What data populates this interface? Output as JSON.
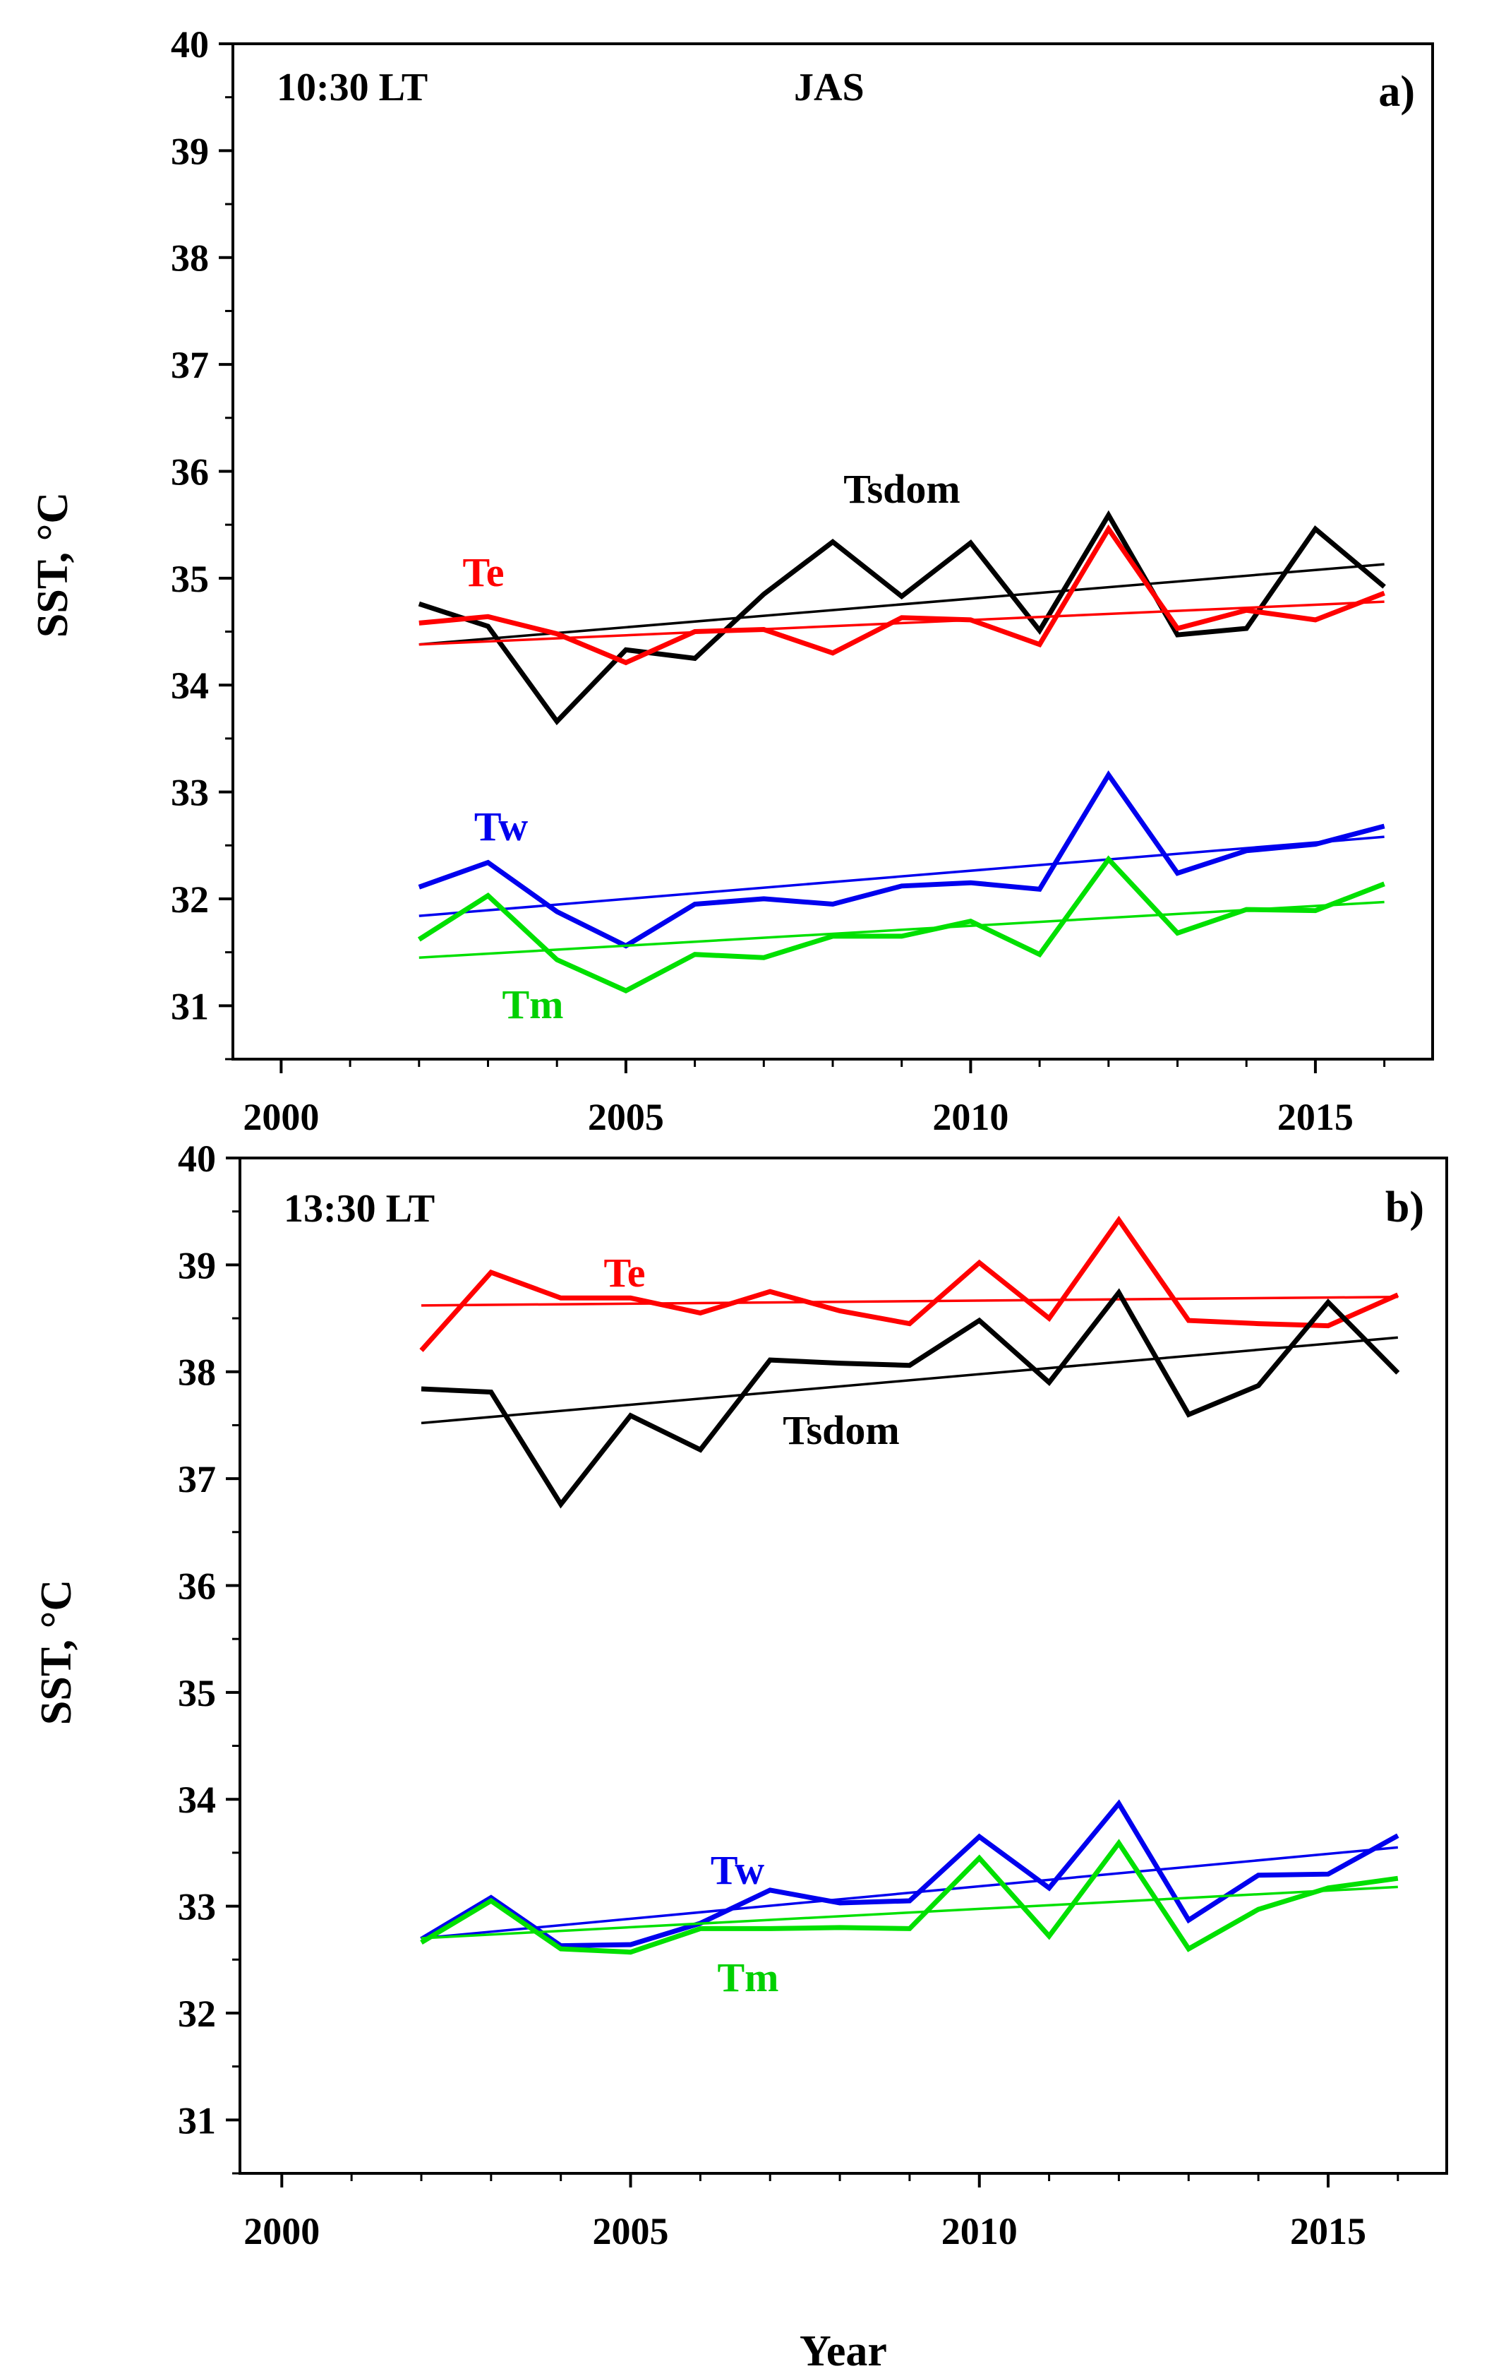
{
  "chart_data": [
    {
      "type": "line",
      "panel_label": "a)",
      "time_label": "10:30 LT",
      "season_label": "JAS",
      "xlabel": "",
      "ylabel": "SST, °C",
      "xlim": [
        1999.3,
        2016.7
      ],
      "ylim": [
        30.5,
        40
      ],
      "xticks": [
        2000,
        2005,
        2010,
        2015
      ],
      "yticks": [
        31,
        32,
        33,
        34,
        35,
        36,
        37,
        38,
        39,
        40
      ],
      "grid": false,
      "x": [
        2002,
        2003,
        2004,
        2005,
        2006,
        2007,
        2008,
        2009,
        2010,
        2011,
        2012,
        2013,
        2014,
        2015,
        2016
      ],
      "series": [
        {
          "name": "Tsdom",
          "color": "#000000",
          "values": [
            34.76,
            34.55,
            33.66,
            34.33,
            34.25,
            34.85,
            35.34,
            34.83,
            35.33,
            34.51,
            35.59,
            34.47,
            34.53,
            35.46,
            34.92
          ],
          "trend": [
            34.38,
            35.13
          ]
        },
        {
          "name": "Te",
          "color": "#ff0000",
          "values": [
            34.58,
            34.64,
            34.48,
            34.21,
            34.5,
            34.52,
            34.3,
            34.63,
            34.61,
            34.38,
            35.46,
            34.53,
            34.7,
            34.61,
            34.86
          ],
          "trend": [
            34.38,
            34.78
          ]
        },
        {
          "name": "Tw",
          "color": "#0000ee",
          "values": [
            32.11,
            32.34,
            31.88,
            31.56,
            31.95,
            32.0,
            31.95,
            32.12,
            32.15,
            32.09,
            33.16,
            32.24,
            32.45,
            32.51,
            32.68
          ],
          "trend": [
            31.84,
            32.58
          ]
        },
        {
          "name": "Tm",
          "color": "#00e000",
          "values": [
            31.62,
            32.03,
            31.43,
            31.14,
            31.48,
            31.45,
            31.65,
            31.65,
            31.79,
            31.48,
            32.37,
            31.68,
            31.9,
            31.89,
            32.14
          ],
          "trend": [
            31.45,
            31.97
          ]
        }
      ]
    },
    {
      "type": "line",
      "panel_label": "b)",
      "time_label": "13:30 LT",
      "xlabel": "Year",
      "ylabel": "SST, °C",
      "xlim": [
        1999.4,
        2016.7
      ],
      "ylim": [
        30.5,
        40
      ],
      "xticks": [
        2000,
        2005,
        2010,
        2015
      ],
      "yticks": [
        31,
        32,
        33,
        34,
        35,
        36,
        37,
        38,
        39,
        40
      ],
      "grid": false,
      "x": [
        2002,
        2003,
        2004,
        2005,
        2006,
        2007,
        2008,
        2009,
        2010,
        2011,
        2012,
        2013,
        2014,
        2015,
        2016
      ],
      "series": [
        {
          "name": "Te",
          "color": "#ff0000",
          "values": [
            38.2,
            38.93,
            38.69,
            38.69,
            38.55,
            38.75,
            38.57,
            38.45,
            39.02,
            38.5,
            39.42,
            38.48,
            38.45,
            38.43,
            38.72
          ],
          "trend": [
            38.62,
            38.7
          ]
        },
        {
          "name": "Tsdom",
          "color": "#000000",
          "values": [
            37.84,
            37.81,
            36.76,
            37.59,
            37.27,
            38.11,
            38.08,
            38.06,
            38.48,
            37.9,
            38.74,
            37.6,
            37.87,
            38.65,
            37.99
          ],
          "trend": [
            37.52,
            38.32
          ]
        },
        {
          "name": "Tw",
          "color": "#0000ee",
          "values": [
            32.69,
            33.08,
            32.63,
            32.64,
            32.84,
            33.15,
            33.03,
            33.05,
            33.65,
            33.17,
            33.96,
            32.87,
            33.29,
            33.3,
            33.66
          ],
          "trend": [
            32.7,
            33.55
          ]
        },
        {
          "name": "Tm",
          "color": "#00e000",
          "values": [
            32.66,
            33.05,
            32.6,
            32.57,
            32.79,
            32.79,
            32.8,
            32.79,
            33.45,
            32.72,
            33.59,
            32.6,
            32.97,
            33.17,
            33.26
          ],
          "trend": [
            32.7,
            33.18
          ]
        }
      ]
    }
  ]
}
